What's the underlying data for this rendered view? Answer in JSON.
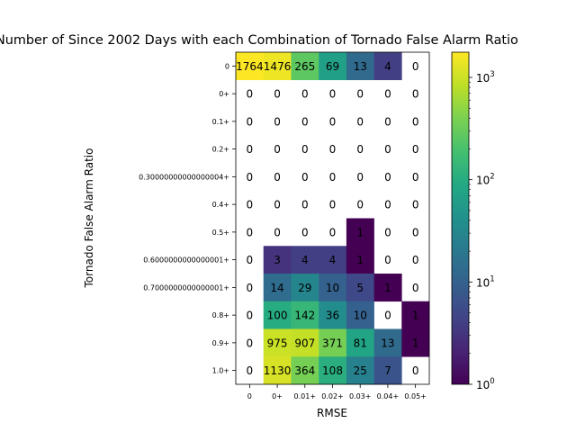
{
  "chart_data": {
    "type": "heatmap",
    "title": "Number of Since 2002 Days with each Combination of Tornado False Alarm Ratio",
    "xlabel": "RMSE",
    "ylabel": "Tornado False Alarm Ratio",
    "x_categories": [
      "0",
      "0+",
      "0.01+",
      "0.02+",
      "0.03+",
      "0.04+",
      "0.05+"
    ],
    "y_categories": [
      "0",
      "0+",
      "0.1+",
      "0.2+",
      "0.30000000000000004+",
      "0.4+",
      "0.5+",
      "0.6000000000000001+",
      "0.7000000000000001+",
      "0.8+",
      "0.9+",
      "1.0+"
    ],
    "values": [
      [
        1764,
        1476,
        265,
        69,
        13,
        4,
        0
      ],
      [
        0,
        0,
        0,
        0,
        0,
        0,
        0
      ],
      [
        0,
        0,
        0,
        0,
        0,
        0,
        0
      ],
      [
        0,
        0,
        0,
        0,
        0,
        0,
        0
      ],
      [
        0,
        0,
        0,
        0,
        0,
        0,
        0
      ],
      [
        0,
        0,
        0,
        0,
        0,
        0,
        0
      ],
      [
        0,
        0,
        0,
        0,
        1,
        0,
        0
      ],
      [
        0,
        3,
        4,
        4,
        1,
        0,
        0
      ],
      [
        0,
        14,
        29,
        10,
        5,
        1,
        0
      ],
      [
        0,
        100,
        142,
        36,
        10,
        0,
        1
      ],
      [
        0,
        975,
        907,
        371,
        81,
        13,
        1
      ],
      [
        0,
        1130,
        364,
        108,
        25,
        7,
        0
      ]
    ],
    "colorscale": "viridis",
    "color_scale_type": "log",
    "color_range": [
      1,
      1764
    ],
    "colorbar_ticks": [
      {
        "value": 1,
        "base": "10",
        "exp": "0"
      },
      {
        "value": 10,
        "base": "10",
        "exp": "1"
      },
      {
        "value": 100,
        "base": "10",
        "exp": "2"
      },
      {
        "value": 1000,
        "base": "10",
        "exp": "3"
      }
    ],
    "zero_cells": "blank"
  }
}
